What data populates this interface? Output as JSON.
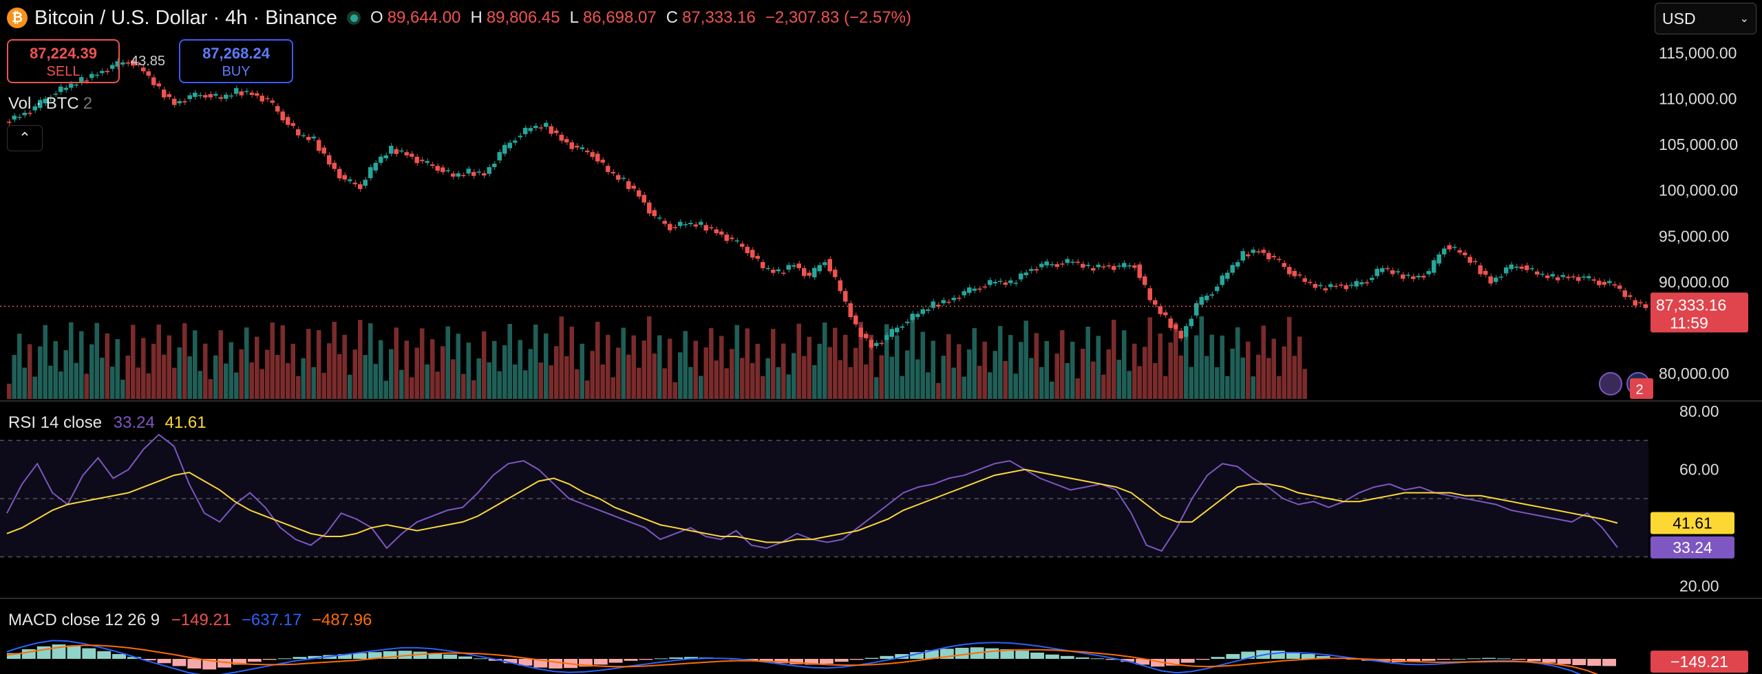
{
  "header": {
    "symbol_title": "Bitcoin / U.S. Dollar · 4h · Binance",
    "open_label": "O",
    "open": "89,644.00",
    "high_label": "H",
    "high": "89,806.45",
    "low_label": "L",
    "low": "86,698.07",
    "close_label": "C",
    "close": "87,333.16",
    "change": "−2,307.83 (−2.57%)"
  },
  "trade": {
    "sell_price": "87,224.39",
    "sell_label": "SELL",
    "spread": "43.85",
    "buy_price": "87,268.24",
    "buy_label": "BUY"
  },
  "volume": {
    "label": "Vol · BTC",
    "count": "2"
  },
  "currency": {
    "selected": "USD"
  },
  "colors": {
    "up": "#26a69a",
    "down": "#ef5350",
    "rsi": "#7e57c2",
    "rsi_ma": "#fdd835",
    "macd": "#2962ff",
    "signal": "#ff6d00"
  },
  "icons": {
    "coin": "bitcoin-icon",
    "live": "live-status-icon",
    "collapse": "chevron-up-icon",
    "dropdown": "chevron-down-icon",
    "flash": "flash-icon",
    "flag": "us-flag-icon"
  },
  "badges": {
    "events_count": "2"
  },
  "rsi_panel": {
    "label": "RSI 14 close",
    "value": "33.24",
    "ma_value": "41.61"
  },
  "macd_panel": {
    "label": "MACD close 12 26 9",
    "hist": "−149.21",
    "macd": "−637.17",
    "signal": "−487.96"
  },
  "chart_data": {
    "type": "candlestick",
    "price_axis_ticks": [
      "115,000.00",
      "110,000.00",
      "105,000.00",
      "100,000.00",
      "95,000.00",
      "90,000.00",
      "80,000.00"
    ],
    "last_price": "87,333.16",
    "countdown": "11:59",
    "close_series": [
      107500,
      108200,
      109000,
      110500,
      111200,
      112000,
      112800,
      113500,
      114200,
      113000,
      111000,
      109500,
      110200,
      110500,
      110000,
      110800,
      110600,
      109800,
      108000,
      106000,
      105500,
      103000,
      101000,
      100500,
      103000,
      104500,
      104000,
      103000,
      102500,
      101500,
      102000,
      101800,
      104000,
      105800,
      106800,
      107000,
      105600,
      104500,
      104000,
      102000,
      101000,
      99500,
      97000,
      96000,
      96300,
      96200,
      95500,
      94500,
      93500,
      91500,
      91000,
      92000,
      90500,
      92500,
      89000,
      85000,
      83000,
      84000,
      85500,
      86500,
      87500,
      88000,
      88800,
      89500,
      90000,
      89800,
      91200,
      91800,
      92000,
      92200,
      91500,
      91800,
      91600,
      91900,
      88000,
      86000,
      84000,
      87500,
      89000,
      91000,
      93000,
      93500,
      92500,
      91200,
      90000,
      89300,
      89700,
      89500,
      90200,
      91500,
      90800,
      90500,
      91000,
      94000,
      93200,
      91800,
      90000,
      91400,
      91800,
      90800,
      90500,
      90600,
      90400,
      90000,
      89600,
      88000,
      87333
    ],
    "rsi_axis_ticks": [
      "80.00",
      "60.00",
      "20.00"
    ],
    "rsi_series": [
      45,
      55,
      62,
      52,
      48,
      58,
      64,
      57,
      60,
      67,
      72,
      68,
      55,
      45,
      42,
      48,
      52,
      47,
      40,
      36,
      34,
      38,
      45,
      43,
      40,
      33,
      38,
      42,
      44,
      46,
      47,
      52,
      58,
      62,
      63,
      60,
      55,
      50,
      48,
      46,
      44,
      42,
      40,
      36,
      38,
      40,
      37,
      36,
      39,
      34,
      33,
      35,
      38,
      36,
      35,
      36,
      40,
      44,
      48,
      52,
      54,
      55,
      57,
      58,
      60,
      62,
      63,
      60,
      57,
      55,
      53,
      54,
      55,
      53,
      45,
      34,
      32,
      40,
      50,
      58,
      62,
      61,
      57,
      54,
      50,
      48,
      49,
      47,
      49,
      52,
      54,
      55,
      53,
      54,
      52,
      51,
      50,
      49,
      48,
      46,
      45,
      44,
      43,
      42,
      45,
      40,
      33.24
    ],
    "rsi_ma_series": [
      38,
      40,
      43,
      46,
      48,
      49,
      50,
      51,
      52,
      54,
      56,
      58,
      59,
      56,
      53,
      49,
      46,
      44,
      42,
      40,
      38,
      37,
      37,
      38,
      40,
      41,
      40,
      39,
      40,
      41,
      42,
      44,
      47,
      50,
      53,
      56,
      57,
      55,
      52,
      50,
      47,
      45,
      43,
      41,
      40,
      39,
      38,
      37,
      37,
      36,
      35,
      35,
      36,
      36,
      37,
      38,
      39,
      41,
      43,
      46,
      48,
      50,
      52,
      54,
      56,
      58,
      59,
      60,
      59,
      58,
      57,
      56,
      55,
      54,
      52,
      48,
      44,
      42,
      42,
      46,
      50,
      54,
      55,
      55,
      54,
      52,
      51,
      50,
      49,
      49,
      50,
      51,
      52,
      52,
      52,
      52,
      51,
      51,
      50,
      49,
      48,
      47,
      46,
      45,
      44,
      43,
      41.61
    ],
    "macd_hist": [
      120,
      200,
      260,
      300,
      280,
      220,
      160,
      100,
      40,
      -30,
      -90,
      -150,
      -200,
      -220,
      -180,
      -120,
      -60,
      -20,
      10,
      40,
      60,
      80,
      100,
      120,
      140,
      160,
      170,
      150,
      120,
      90,
      50,
      10,
      -40,
      -90,
      -140,
      -180,
      -200,
      -190,
      -160,
      -120,
      -80,
      -40,
      -20,
      10,
      30,
      40,
      30,
      20,
      0,
      -30,
      -60,
      -90,
      -110,
      -120,
      -100,
      -60,
      -20,
      20,
      60,
      100,
      140,
      180,
      210,
      230,
      240,
      220,
      200,
      170,
      130,
      90,
      60,
      30,
      10,
      -20,
      -60,
      -120,
      -160,
      -140,
      -80,
      -20,
      40,
      100,
      150,
      180,
      170,
      140,
      100,
      60,
      20,
      -10,
      -40,
      -60,
      -70,
      -60,
      -40,
      -20,
      0,
      10,
      20,
      10,
      -20,
      -50,
      -80,
      -110,
      -130,
      -145,
      -149.21
    ],
    "macd_line": [
      150,
      250,
      330,
      380,
      370,
      320,
      250,
      170,
      80,
      -20,
      -110,
      -200,
      -290,
      -340,
      -330,
      -280,
      -220,
      -160,
      -100,
      -40,
      0,
      40,
      80,
      120,
      160,
      200,
      230,
      230,
      210,
      170,
      120,
      60,
      0,
      -70,
      -140,
      -210,
      -260,
      -280,
      -270,
      -240,
      -200,
      -150,
      -110,
      -70,
      -30,
      0,
      10,
      10,
      0,
      -30,
      -70,
      -110,
      -150,
      -180,
      -190,
      -170,
      -130,
      -80,
      -20,
      40,
      110,
      180,
      250,
      300,
      330,
      340,
      330,
      300,
      260,
      210,
      160,
      110,
      60,
      0,
      -70,
      -160,
      -250,
      -290,
      -260,
      -200,
      -120,
      -40,
      40,
      100,
      130,
      130,
      110,
      80,
      40,
      0,
      -40,
      -80,
      -110,
      -120,
      -110,
      -90,
      -70,
      -50,
      -40,
      -40,
      -60,
      -100,
      -160,
      -250,
      -380,
      -510,
      -637.17
    ],
    "signal_line": [
      80,
      120,
      170,
      220,
      260,
      280,
      280,
      260,
      230,
      190,
      140,
      90,
      30,
      -20,
      -60,
      -90,
      -110,
      -120,
      -120,
      -110,
      -90,
      -70,
      -50,
      -30,
      0,
      30,
      60,
      90,
      110,
      120,
      120,
      110,
      90,
      60,
      20,
      -20,
      -60,
      -100,
      -130,
      -150,
      -160,
      -160,
      -150,
      -130,
      -110,
      -90,
      -70,
      -50,
      -40,
      -40,
      -50,
      -60,
      -80,
      -100,
      -120,
      -130,
      -130,
      -120,
      -100,
      -70,
      -30,
      10,
      50,
      90,
      130,
      160,
      180,
      190,
      190,
      180,
      160,
      140,
      110,
      80,
      40,
      -10,
      -70,
      -120,
      -150,
      -160,
      -150,
      -130,
      -100,
      -70,
      -40,
      -20,
      0,
      10,
      10,
      0,
      -10,
      -30,
      -50,
      -60,
      -70,
      -70,
      -65,
      -60,
      -55,
      -55,
      -60,
      -80,
      -110,
      -160,
      -240,
      -360,
      -487.96
    ]
  }
}
